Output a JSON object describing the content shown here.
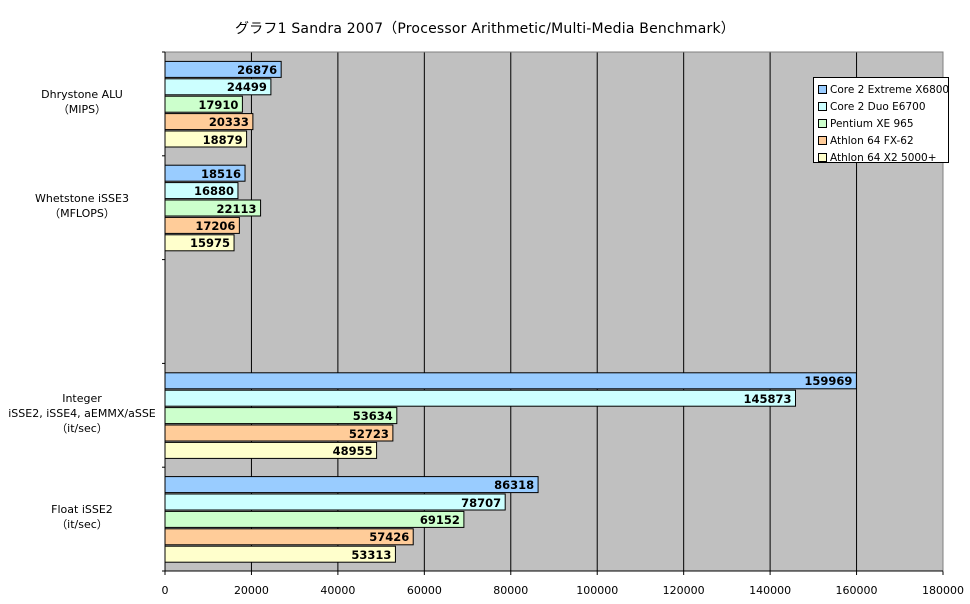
{
  "chart_data": {
    "type": "bar",
    "orientation": "horizontal",
    "title": "グラフ1  Sandra 2007（Processor Arithmetic/Multi-Media Benchmark）",
    "categories": [
      {
        "lines": [
          "Dhrystone ALU",
          "（MIPS）"
        ]
      },
      {
        "lines": [
          "Whetstone iSSE3",
          "（MFLOPS）"
        ]
      },
      {
        "lines": [
          ""
        ]
      },
      {
        "lines": [
          "Integer",
          "iSSE2, iSSE4, aEMMX/aSSE",
          "（it/sec）"
        ]
      },
      {
        "lines": [
          "Float iSSE2",
          "（it/sec）"
        ]
      }
    ],
    "series": [
      {
        "name": "Core 2 Extreme X6800",
        "color": "#99ccff",
        "values": [
          26876,
          18516,
          null,
          159969,
          86318
        ]
      },
      {
        "name": "Core 2 Duo E6700",
        "color": "#ccffff",
        "values": [
          24499,
          16880,
          null,
          145873,
          78707
        ]
      },
      {
        "name": "Pentium XE 965",
        "color": "#ccffcc",
        "values": [
          17910,
          22113,
          null,
          53634,
          69152
        ]
      },
      {
        "name": "Athlon 64 FX-62",
        "color": "#ffcc99",
        "values": [
          20333,
          17206,
          null,
          52723,
          57426
        ]
      },
      {
        "name": "Athlon 64 X2 5000+",
        "color": "#ffffcc",
        "values": [
          18879,
          15975,
          null,
          48955,
          53313
        ]
      }
    ],
    "xlim": [
      0,
      180000
    ],
    "xticks": [
      "0",
      "20000",
      "40000",
      "60000",
      "80000",
      "100000",
      "120000",
      "140000",
      "160000",
      "180000"
    ],
    "grid": true,
    "plot_background": "#c0c0c0",
    "legend_position": "top-right"
  }
}
